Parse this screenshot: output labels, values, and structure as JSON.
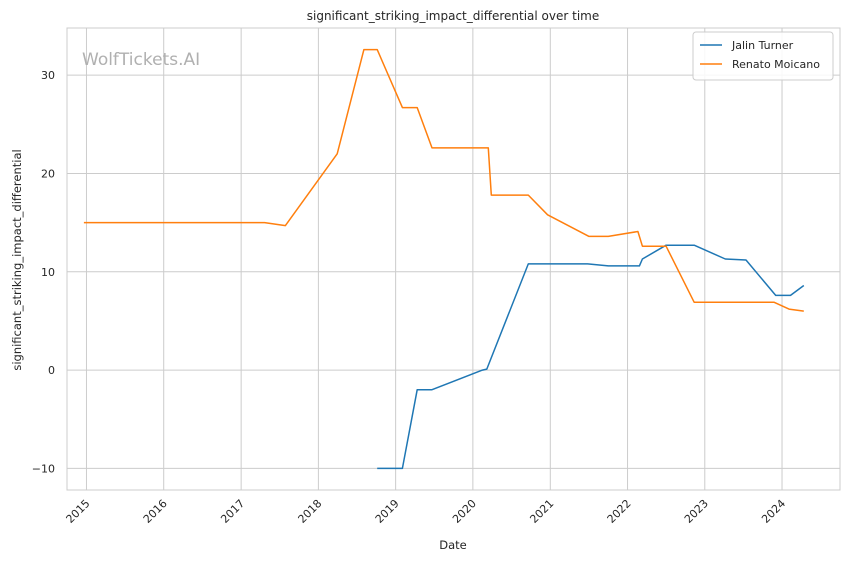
{
  "watermark": "WolfTickets.AI",
  "chart_data": {
    "type": "line",
    "title": "significant_striking_impact_differential over time",
    "xlabel": "Date",
    "ylabel": "significant_striking_impact_differential",
    "xlim": [
      "2014-10-01",
      "2024-10-01"
    ],
    "ylim": [
      -12.2,
      34.8
    ],
    "x_ticks": [
      "2015",
      "2016",
      "2017",
      "2018",
      "2019",
      "2020",
      "2021",
      "2022",
      "2023",
      "2024"
    ],
    "y_ticks": [
      -10,
      0,
      10,
      20,
      30
    ],
    "y_tick_labels": [
      "−10",
      "0",
      "10",
      "20",
      "30"
    ],
    "grid": true,
    "legend_position": "top-right",
    "series": [
      {
        "name": "Jalin Turner",
        "color": "#1f77b4",
        "points": [
          [
            "2018-10-06",
            -10.0
          ],
          [
            "2019-02-02",
            -10.0
          ],
          [
            "2019-04-13",
            -2.0
          ],
          [
            "2019-06-22",
            -2.0
          ],
          [
            "2020-02-15",
            0.0
          ],
          [
            "2020-03-07",
            0.1
          ],
          [
            "2020-09-19",
            10.8
          ],
          [
            "2021-06-26",
            10.8
          ],
          [
            "2021-10-02",
            10.6
          ],
          [
            "2022-02-26",
            10.6
          ],
          [
            "2022-03-12",
            11.3
          ],
          [
            "2022-07-02",
            12.7
          ],
          [
            "2022-11-12",
            12.7
          ],
          [
            "2023-04-08",
            11.3
          ],
          [
            "2023-07-15",
            11.2
          ],
          [
            "2023-12-02",
            7.6
          ],
          [
            "2024-02-10",
            7.6
          ],
          [
            "2024-04-13",
            8.6
          ]
        ]
      },
      {
        "name": "Renato Moicano",
        "color": "#ff7f0e",
        "points": [
          [
            "2014-12-20",
            15.0
          ],
          [
            "2017-04-22",
            15.0
          ],
          [
            "2017-07-29",
            14.7
          ],
          [
            "2018-03-31",
            22.0
          ],
          [
            "2018-08-04",
            32.6
          ],
          [
            "2018-10-06",
            32.6
          ],
          [
            "2019-02-02",
            26.7
          ],
          [
            "2019-04-13",
            26.7
          ],
          [
            "2019-06-22",
            22.6
          ],
          [
            "2020-03-14",
            22.6
          ],
          [
            "2020-03-28",
            17.8
          ],
          [
            "2020-09-19",
            17.8
          ],
          [
            "2020-12-19",
            15.8
          ],
          [
            "2021-07-03",
            13.6
          ],
          [
            "2021-10-02",
            13.6
          ],
          [
            "2022-02-19",
            14.1
          ],
          [
            "2022-03-12",
            12.6
          ],
          [
            "2022-07-02",
            12.6
          ],
          [
            "2022-11-12",
            6.9
          ],
          [
            "2023-11-25",
            6.9
          ],
          [
            "2024-02-03",
            6.2
          ],
          [
            "2024-04-13",
            6.0
          ]
        ]
      }
    ]
  }
}
